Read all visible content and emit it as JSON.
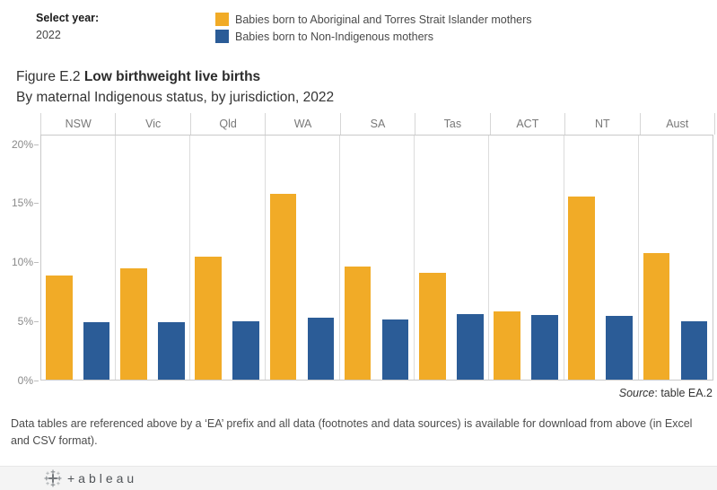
{
  "controls": {
    "select_year_label": "Select year:",
    "select_year_value": "2022"
  },
  "legend": {
    "items": [
      {
        "label": "Babies born to Aboriginal and Torres Strait Islander mothers",
        "color": "#F1AB27"
      },
      {
        "label": "Babies born to Non-Indigenous mothers",
        "color": "#2B5C97"
      }
    ]
  },
  "title": {
    "figure_label": "Figure E.2",
    "title_bold": "Low birthweight live births",
    "subtitle": "By maternal Indigenous status, by jurisdiction, 2022"
  },
  "chart_data": {
    "type": "bar",
    "categories": [
      "NSW",
      "Vic",
      "Qld",
      "WA",
      "SA",
      "Tas",
      "ACT",
      "NT",
      "Aust"
    ],
    "series": [
      {
        "name": "Babies born to Aboriginal and Torres Strait Islander mothers",
        "color": "#F1AB27",
        "values": [
          8.9,
          9.5,
          10.5,
          15.8,
          9.6,
          9.1,
          5.8,
          15.6,
          10.8
        ]
      },
      {
        "name": "Babies born to Non-Indigenous mothers",
        "color": "#2B5C97",
        "values": [
          4.9,
          4.9,
          5.0,
          5.3,
          5.1,
          5.6,
          5.5,
          5.4,
          5.0
        ]
      }
    ],
    "title": "Figure E.2 Low birthweight live births",
    "subtitle": "By maternal Indigenous status, by jurisdiction, 2022",
    "xlabel": "",
    "ylabel": "",
    "y_ticks": [
      "0%",
      "5%",
      "10%",
      "15%",
      "20%"
    ],
    "y_tick_values": [
      0,
      5,
      10,
      15,
      20
    ],
    "ylim": [
      0,
      20.8
    ],
    "grid": "none",
    "legend_position": "top"
  },
  "source": {
    "prefix_italic": "Source",
    "rest": ": table EA.2"
  },
  "footnote": "Data tables are referenced above by a ‘EA’ prefix and all data (footnotes and data sources) is available for download from above (in Excel and CSV format).",
  "footer": {
    "wordmark": "+ableau"
  }
}
